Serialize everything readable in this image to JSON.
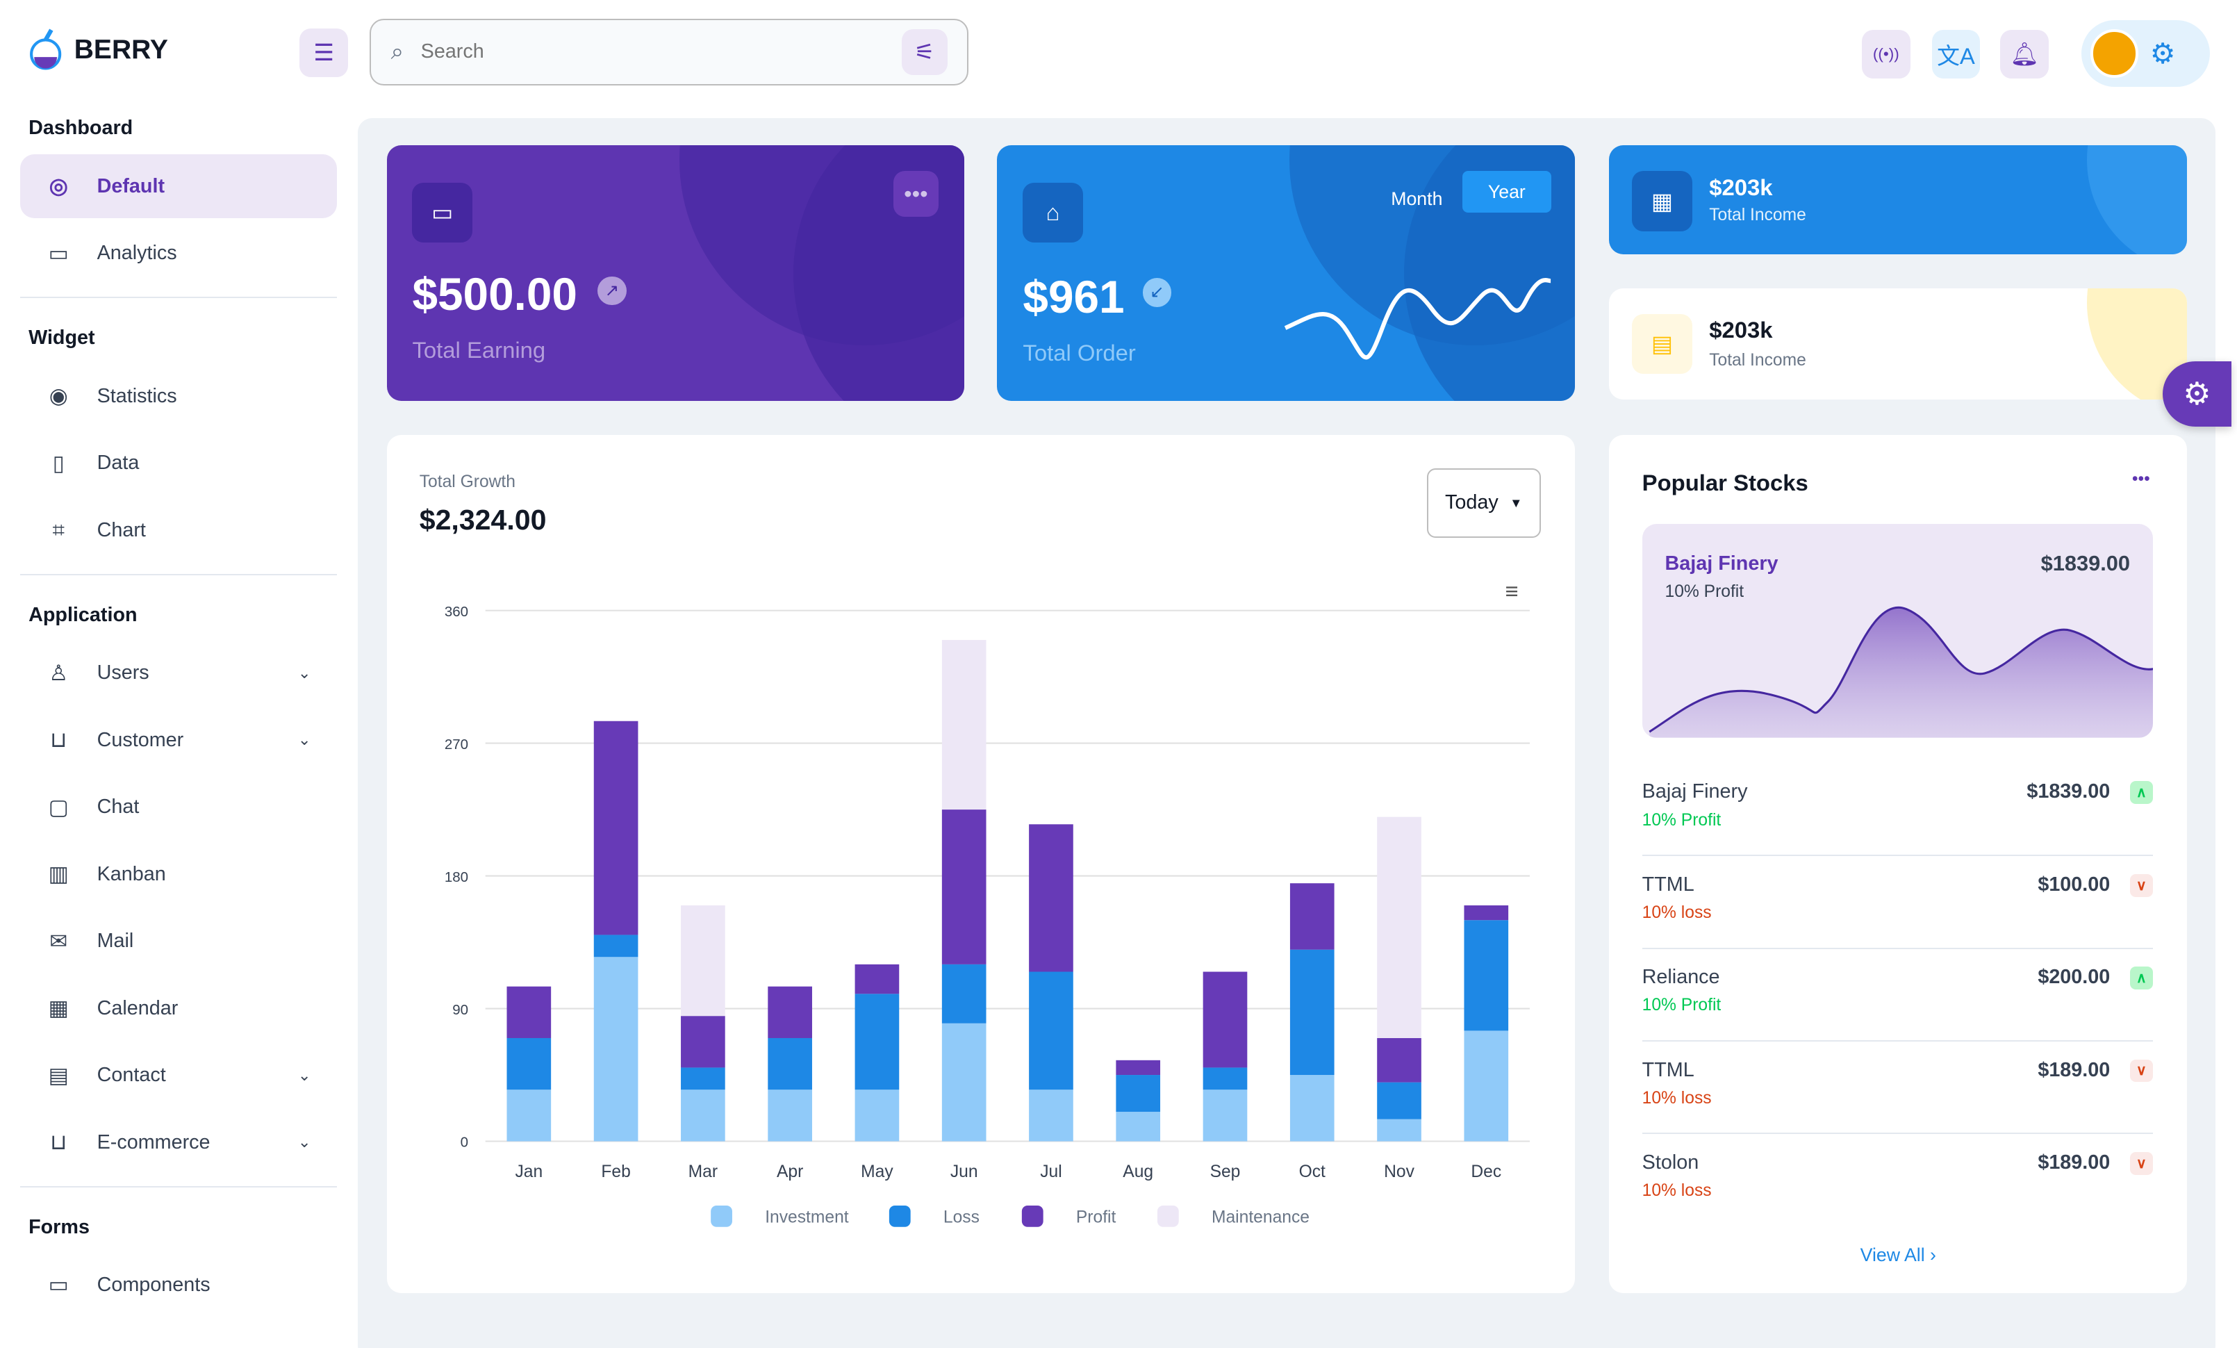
{
  "brand": {
    "name": "BERRY"
  },
  "search": {
    "placeholder": "Search"
  },
  "sidebar": {
    "sections": [
      {
        "title": "Dashboard",
        "items": [
          {
            "label": "Default",
            "icon": "dashboard-icon",
            "active": true
          },
          {
            "label": "Analytics",
            "icon": "device-analytics-icon"
          }
        ]
      },
      {
        "title": "Widget",
        "items": [
          {
            "label": "Statistics",
            "icon": "chart-arcs-icon"
          },
          {
            "label": "Data",
            "icon": "clipboard-list-icon"
          },
          {
            "label": "Chart",
            "icon": "chart-dots-icon"
          }
        ]
      },
      {
        "title": "Application",
        "items": [
          {
            "label": "Users",
            "icon": "user-check-icon",
            "chevron": true
          },
          {
            "label": "Customer",
            "icon": "basket-icon",
            "chevron": true
          },
          {
            "label": "Chat",
            "icon": "messages-icon"
          },
          {
            "label": "Kanban",
            "icon": "layout-kanban-icon"
          },
          {
            "label": "Mail",
            "icon": "mail-icon"
          },
          {
            "label": "Calendar",
            "icon": "calendar-icon"
          },
          {
            "label": "Contact",
            "icon": "address-book-icon",
            "chevron": true
          },
          {
            "label": "E-commerce",
            "icon": "basket-icon",
            "chevron": true
          }
        ]
      },
      {
        "title": "Forms",
        "items": [
          {
            "label": "Components",
            "icon": "forms-icon"
          }
        ]
      }
    ]
  },
  "cards": {
    "earning": {
      "value": "$500.00",
      "label": "Total Earning"
    },
    "order": {
      "value": "$961",
      "label": "Total Order",
      "tabs": [
        "Month",
        "Year"
      ],
      "active_tab": "Year"
    },
    "income1": {
      "value": "$203k",
      "label": "Total Income"
    },
    "income2": {
      "value": "$203k",
      "label": "Total Income"
    }
  },
  "growth": {
    "label": "Total Growth",
    "value": "$2,324.00",
    "period": "Today"
  },
  "chart_data": {
    "type": "bar",
    "stacked": true,
    "categories": [
      "Jan",
      "Feb",
      "Mar",
      "Apr",
      "May",
      "Jun",
      "Jul",
      "Aug",
      "Sep",
      "Oct",
      "Nov",
      "Dec"
    ],
    "ylim": [
      0,
      360
    ],
    "yticks": [
      "0",
      "90",
      "180",
      "270",
      "360"
    ],
    "series": [
      {
        "name": "Investment",
        "color": "#90caf9",
        "values": [
          35,
          125,
          35,
          35,
          35,
          80,
          35,
          20,
          35,
          45,
          15,
          75
        ]
      },
      {
        "name": "Loss",
        "color": "#1e88e5",
        "values": [
          35,
          15,
          15,
          35,
          65,
          40,
          80,
          25,
          15,
          85,
          25,
          75
        ]
      },
      {
        "name": "Profit",
        "color": "#673ab7",
        "values": [
          35,
          145,
          35,
          35,
          20,
          105,
          100,
          10,
          65,
          45,
          30,
          10
        ]
      },
      {
        "name": "Maintenance",
        "color": "#ede7f6",
        "values": [
          0,
          0,
          75,
          0,
          0,
          115,
          0,
          0,
          0,
          0,
          150,
          0
        ]
      }
    ],
    "legend": "bottom",
    "grid": true
  },
  "stocks": {
    "title": "Popular Stocks",
    "featured": {
      "name": "Bajaj Finery",
      "sub": "10% Profit",
      "value": "$1839.00"
    },
    "items": [
      {
        "name": "Bajaj Finery",
        "value": "$1839.00",
        "change": "10% Profit",
        "up": true
      },
      {
        "name": "TTML",
        "value": "$100.00",
        "change": "10% loss",
        "up": false
      },
      {
        "name": "Reliance",
        "value": "$200.00",
        "change": "10% Profit",
        "up": true
      },
      {
        "name": "TTML",
        "value": "$189.00",
        "change": "10% loss",
        "up": false
      },
      {
        "name": "Stolon",
        "value": "$189.00",
        "change": "10% loss",
        "up": false
      }
    ],
    "view_all": "View All"
  },
  "colors": {
    "primary": "#5e35b1",
    "secondary": "#1e88e5",
    "success": "#00c853",
    "error": "#d84315"
  }
}
